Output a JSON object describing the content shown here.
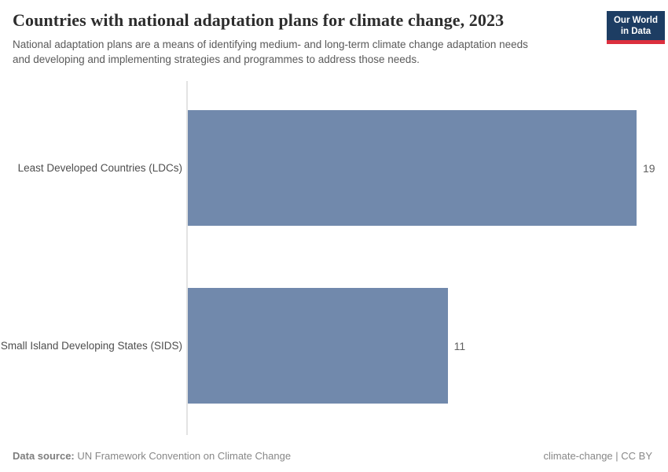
{
  "header": {
    "title": "Countries with national adaptation plans for climate change, 2023",
    "subtitle_lines": [
      "National adaptation plans are a means of identifying medium- and long-term climate change adaptation needs",
      "and developing and implementing strategies and programmes to address those needs."
    ],
    "logo": {
      "line1": "Our World",
      "line2": "in Data",
      "bg_color": "#1d3d63",
      "accent_color": "#dc2f3e",
      "text_color": "#ffffff"
    }
  },
  "chart_data": {
    "type": "bar",
    "orientation": "horizontal",
    "title": "Countries with national adaptation plans for climate change, 2023",
    "categories": [
      "Least Developed Countries (LDCs)",
      "Small Island Developing States (SIDS)"
    ],
    "values": [
      19,
      11
    ],
    "xlabel": "",
    "ylabel": "",
    "xlim": [
      0,
      19
    ],
    "grid": false,
    "legend": "none",
    "bar_color": "#7189ac",
    "axis_line_color": "#e3e3e3"
  },
  "footer": {
    "source_label": "Data source:",
    "source_text": "UN Framework Convention on Climate Change",
    "license_text": "climate-change | CC BY"
  }
}
